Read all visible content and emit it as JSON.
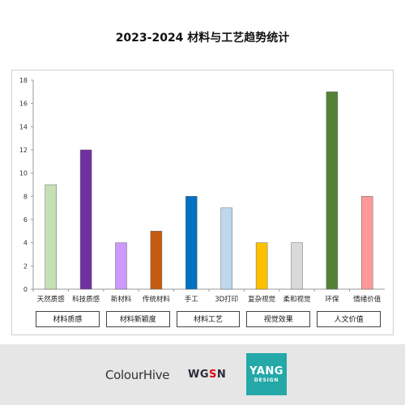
{
  "chart_data": {
    "type": "bar",
    "title": "2023-2024 材料与工艺趋势统计",
    "categories": [
      "天然质感",
      "科技质感",
      "新材料",
      "传统材料",
      "手工",
      "3D打印",
      "复杂视觉",
      "柔和视觉",
      "环保",
      "情绪价值"
    ],
    "values": [
      9,
      12,
      4,
      5,
      8,
      7,
      4,
      4,
      17,
      8
    ],
    "colors": [
      "#c5e0b4",
      "#7030a0",
      "#cc99ff",
      "#c55a11",
      "#0070c0",
      "#bdd7ee",
      "#ffc000",
      "#d9d9d9",
      "#548235",
      "#ff9999"
    ],
    "ylim": [
      0,
      18
    ],
    "yticks": [
      0,
      2,
      4,
      6,
      8,
      10,
      12,
      14,
      16,
      18
    ],
    "grid": false,
    "groups": [
      {
        "label": "材料质感",
        "span": 2
      },
      {
        "label": "材料新颖度",
        "span": 2
      },
      {
        "label": "材料工艺",
        "span": 2
      },
      {
        "label": "视觉效果",
        "span": 2
      },
      {
        "label": "人文价值",
        "span": 2
      }
    ]
  },
  "footer": {
    "logos": {
      "colourhive": "ColourHive",
      "wgsn_w": "WG",
      "wgsn_o": "S",
      "wgsn_n": "N",
      "yang_big": "YANG",
      "yang_small": "DESIGN"
    }
  }
}
